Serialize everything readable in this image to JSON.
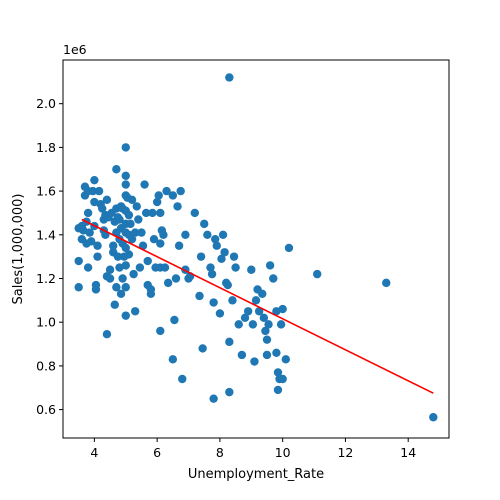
{
  "chart_data": {
    "type": "scatter",
    "xlabel": "Unemployment_Rate",
    "ylabel": "Sales(1,000,000)",
    "y_offset_label": "1e6",
    "xlim": [
      3.0,
      15.3
    ],
    "ylim": [
      0.47,
      2.2
    ],
    "x_ticks": [
      4,
      6,
      8,
      10,
      12,
      14
    ],
    "y_ticks": [
      0.6,
      0.8,
      1.0,
      1.2,
      1.4,
      1.6,
      1.8,
      2.0
    ],
    "x_tick_labels": [
      "4",
      "6",
      "8",
      "10",
      "12",
      "14"
    ],
    "y_tick_labels": [
      "0.6",
      "0.8",
      "1.0",
      "1.2",
      "1.4",
      "1.6",
      "1.8",
      "2.0"
    ],
    "grid": false,
    "point_color": "#1f77b4",
    "regression_line": {
      "color": "#ff0000",
      "x": [
        3.6,
        14.8
      ],
      "y": [
        1.47,
        0.675
      ]
    },
    "points": [
      [
        3.5,
        1.28
      ],
      [
        3.5,
        1.16
      ],
      [
        3.5,
        1.43
      ],
      [
        3.6,
        1.44
      ],
      [
        3.6,
        1.38
      ],
      [
        3.65,
        1.42
      ],
      [
        3.7,
        1.62
      ],
      [
        3.7,
        1.58
      ],
      [
        3.75,
        1.46
      ],
      [
        3.75,
        1.36
      ],
      [
        3.8,
        1.6
      ],
      [
        3.8,
        1.5
      ],
      [
        3.8,
        1.25
      ],
      [
        3.85,
        1.41
      ],
      [
        3.9,
        1.37
      ],
      [
        3.95,
        1.6
      ],
      [
        4.0,
        1.65
      ],
      [
        4.0,
        1.55
      ],
      [
        4.0,
        1.44
      ],
      [
        4.05,
        1.17
      ],
      [
        4.05,
        1.15
      ],
      [
        4.1,
        1.35
      ],
      [
        4.1,
        1.3
      ],
      [
        4.15,
        1.6
      ],
      [
        4.2,
        1.54
      ],
      [
        4.25,
        1.52
      ],
      [
        4.3,
        1.42
      ],
      [
        4.3,
        1.47
      ],
      [
        4.35,
        1.49
      ],
      [
        4.35,
        1.4
      ],
      [
        4.4,
        1.56
      ],
      [
        4.4,
        1.21
      ],
      [
        4.4,
        0.945
      ],
      [
        4.45,
        1.48
      ],
      [
        4.5,
        1.2
      ],
      [
        4.5,
        1.24
      ],
      [
        4.55,
        1.5
      ],
      [
        4.6,
        1.32
      ],
      [
        4.6,
        1.35
      ],
      [
        4.65,
        1.46
      ],
      [
        4.65,
        1.08
      ],
      [
        4.7,
        1.7
      ],
      [
        4.7,
        1.52
      ],
      [
        4.7,
        1.41
      ],
      [
        4.7,
        1.16
      ],
      [
        4.75,
        1.48
      ],
      [
        4.75,
        1.3
      ],
      [
        4.8,
        1.47
      ],
      [
        4.8,
        1.38
      ],
      [
        4.8,
        1.25
      ],
      [
        4.85,
        1.53
      ],
      [
        4.85,
        1.43
      ],
      [
        4.85,
        1.13
      ],
      [
        4.9,
        1.52
      ],
      [
        4.9,
        1.36
      ],
      [
        4.9,
        1.2
      ],
      [
        4.95,
        1.3
      ],
      [
        5.0,
        1.8
      ],
      [
        5.0,
        1.67
      ],
      [
        5.0,
        1.63
      ],
      [
        5.0,
        1.58
      ],
      [
        5.0,
        1.51
      ],
      [
        5.0,
        1.45
      ],
      [
        5.0,
        1.41
      ],
      [
        5.0,
        1.34
      ],
      [
        5.0,
        1.26
      ],
      [
        5.0,
        1.16
      ],
      [
        5.0,
        1.03
      ],
      [
        5.05,
        1.57
      ],
      [
        5.1,
        1.49
      ],
      [
        5.1,
        1.4
      ],
      [
        5.1,
        1.31
      ],
      [
        5.15,
        1.45
      ],
      [
        5.2,
        1.56
      ],
      [
        5.2,
        1.38
      ],
      [
        5.25,
        1.22
      ],
      [
        5.3,
        1.41
      ],
      [
        5.3,
        1.05
      ],
      [
        5.35,
        1.53
      ],
      [
        5.4,
        1.47
      ],
      [
        5.45,
        1.25
      ],
      [
        5.5,
        1.41
      ],
      [
        5.55,
        1.35
      ],
      [
        5.6,
        1.63
      ],
      [
        5.65,
        1.5
      ],
      [
        5.7,
        1.17
      ],
      [
        5.7,
        1.28
      ],
      [
        5.8,
        1.15
      ],
      [
        5.8,
        1.13
      ],
      [
        5.85,
        1.5
      ],
      [
        5.9,
        1.38
      ],
      [
        5.95,
        1.25
      ],
      [
        6.0,
        1.55
      ],
      [
        6.05,
        1.58
      ],
      [
        6.1,
        1.5
      ],
      [
        6.1,
        1.36
      ],
      [
        6.1,
        1.25
      ],
      [
        6.1,
        0.96
      ],
      [
        6.15,
        1.42
      ],
      [
        6.2,
        1.4
      ],
      [
        6.25,
        1.25
      ],
      [
        6.3,
        1.6
      ],
      [
        6.35,
        1.18
      ],
      [
        6.5,
        1.58
      ],
      [
        6.55,
        1.01
      ],
      [
        6.5,
        0.83
      ],
      [
        6.6,
        1.2
      ],
      [
        6.65,
        1.53
      ],
      [
        6.7,
        1.35
      ],
      [
        6.75,
        1.6
      ],
      [
        6.8,
        0.74
      ],
      [
        6.9,
        1.4
      ],
      [
        6.9,
        1.24
      ],
      [
        7.0,
        1.2
      ],
      [
        7.05,
        1.21
      ],
      [
        7.2,
        1.5
      ],
      [
        7.35,
        1.12
      ],
      [
        7.4,
        1.3
      ],
      [
        7.45,
        0.88
      ],
      [
        7.5,
        1.45
      ],
      [
        7.6,
        1.4
      ],
      [
        7.7,
        1.25
      ],
      [
        7.75,
        1.22
      ],
      [
        7.8,
        1.09
      ],
      [
        7.8,
        0.65
      ],
      [
        7.85,
        1.38
      ],
      [
        7.9,
        1.35
      ],
      [
        8.0,
        1.04
      ],
      [
        8.05,
        1.29
      ],
      [
        8.1,
        1.4
      ],
      [
        8.15,
        1.32
      ],
      [
        8.2,
        1.18
      ],
      [
        8.25,
        1.17
      ],
      [
        8.3,
        2.12
      ],
      [
        8.3,
        0.91
      ],
      [
        8.3,
        0.68
      ],
      [
        8.4,
        1.1
      ],
      [
        8.45,
        1.3
      ],
      [
        8.5,
        1.25
      ],
      [
        8.6,
        0.99
      ],
      [
        8.7,
        0.85
      ],
      [
        8.8,
        1.02
      ],
      [
        8.9,
        1.05
      ],
      [
        9.0,
        1.24
      ],
      [
        9.05,
        0.99
      ],
      [
        9.1,
        0.82
      ],
      [
        9.15,
        1.1
      ],
      [
        9.2,
        1.15
      ],
      [
        9.25,
        1.05
      ],
      [
        9.35,
        1.13
      ],
      [
        9.4,
        1.02
      ],
      [
        9.45,
        0.96
      ],
      [
        9.5,
        0.85
      ],
      [
        9.5,
        0.92
      ],
      [
        9.55,
        0.99
      ],
      [
        9.6,
        1.26
      ],
      [
        9.7,
        1.2
      ],
      [
        9.8,
        1.05
      ],
      [
        9.8,
        0.86
      ],
      [
        9.85,
        0.77
      ],
      [
        9.9,
        0.74
      ],
      [
        9.85,
        0.69
      ],
      [
        9.95,
        0.99
      ],
      [
        10.0,
        1.06
      ],
      [
        10.0,
        0.74
      ],
      [
        10.1,
        0.83
      ],
      [
        10.2,
        1.34
      ],
      [
        11.1,
        1.22
      ],
      [
        13.3,
        1.18
      ],
      [
        14.8,
        0.565
      ]
    ]
  }
}
